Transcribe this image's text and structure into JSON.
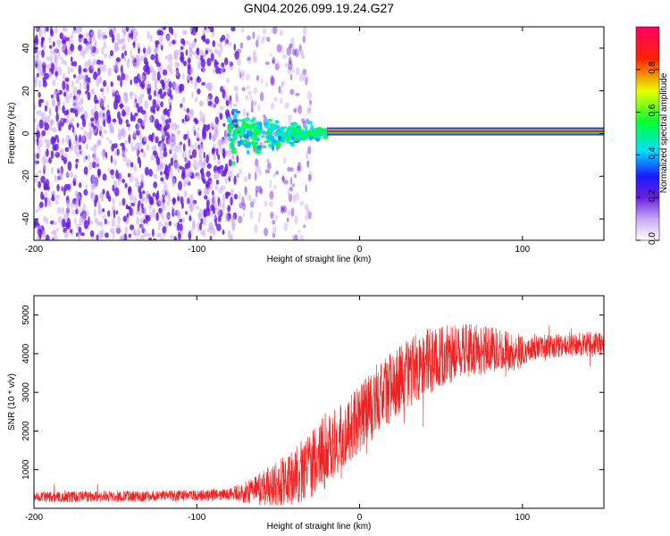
{
  "figure_title": "GN04.2026.099.19.24.G27",
  "colors": {
    "snr_line": "#ee2222",
    "axis": "#000000",
    "spec_noise_dark": "#6a1fe0",
    "spec_noise_light": "#c9a8f5"
  },
  "chart_data": [
    {
      "type": "heatmap",
      "title": "GN04.2026.099.19.24.G27",
      "xlabel": "Height of straight line (km)",
      "ylabel": "Frequency (Hz)",
      "xlim": [
        -200,
        150
      ],
      "ylim": [
        -50,
        50
      ],
      "xticks": [
        -200,
        -100,
        0,
        100
      ],
      "yticks": [
        -40,
        -20,
        0,
        20,
        40
      ],
      "colorbar": {
        "label": "Normalized spectral amplitude",
        "range": [
          0.0,
          1.0
        ],
        "ticks": [
          0.0,
          0.2,
          0.4,
          0.6,
          0.8
        ],
        "colormap": [
          "#ffffff",
          "#6a1fe0",
          "#1a1aff",
          "#00e0ff",
          "#00ff33",
          "#e8ff00",
          "#ff2200",
          "#ff0066"
        ]
      },
      "components": [
        {
          "name": "noise",
          "height_km": [
            -200,
            -75
          ],
          "frequency_hz": [
            -50,
            50
          ],
          "amplitude": 0.15
        },
        {
          "name": "noise sparse",
          "height_km": [
            -75,
            -30
          ],
          "frequency_hz": [
            -50,
            50
          ],
          "amplitude": 0.05
        },
        {
          "name": "signal onset",
          "height_km": [
            -80,
            -20
          ],
          "frequency_hz": [
            -10,
            10
          ],
          "amplitude": 0.35
        },
        {
          "name": "tone",
          "height_km": [
            -20,
            150
          ],
          "frequency_hz": 1,
          "amplitude": 0.95
        }
      ]
    },
    {
      "type": "line",
      "xlabel": "Height of straight line (km)",
      "ylabel": "SNR (10 * v/v)",
      "xlim": [
        -200,
        150
      ],
      "ylim": [
        0,
        5500
      ],
      "xticks": [
        -200,
        -100,
        0,
        100
      ],
      "yticks": [
        1000,
        2000,
        3000,
        4000,
        5000
      ],
      "series": [
        {
          "name": "SNR",
          "x": [
            -200,
            -180,
            -160,
            -140,
            -120,
            -100,
            -90,
            -80,
            -70,
            -60,
            -50,
            -40,
            -30,
            -20,
            -10,
            0,
            10,
            20,
            30,
            40,
            50,
            60,
            70,
            80,
            90,
            100,
            110,
            120,
            130,
            140,
            150
          ],
          "values": [
            300,
            300,
            310,
            310,
            320,
            330,
            340,
            360,
            420,
            520,
            650,
            850,
            1150,
            1500,
            1900,
            2300,
            2750,
            3150,
            3500,
            3750,
            3950,
            4050,
            4100,
            4100,
            4050,
            4050,
            4150,
            4200,
            4250,
            4250,
            4250
          ]
        }
      ]
    }
  ]
}
